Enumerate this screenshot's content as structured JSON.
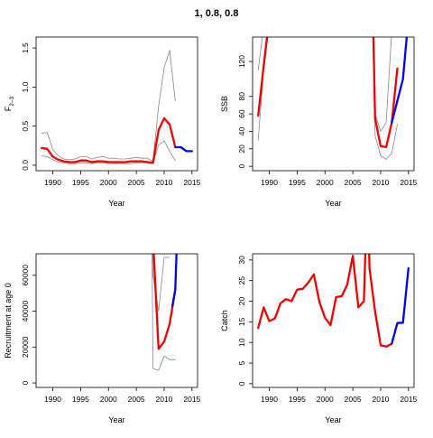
{
  "figure": {
    "title": "1, 0.8, 0.8",
    "colors": {
      "estimate": "#ee0000",
      "projection": "#0000ee",
      "bounds": "#888888",
      "axis": "#000000"
    }
  },
  "chart_data": [
    {
      "type": "line",
      "title": "",
      "xlabel": "Year",
      "ylabel": "F2–3",
      "ylabel_main": "F",
      "ylabel_sub": "2–3",
      "xlim": [
        1987,
        2016
      ],
      "ylim": [
        -0.07,
        1.64
      ],
      "xticks": [
        1990,
        1995,
        2000,
        2005,
        2010,
        2015
      ],
      "yticks": [
        0.0,
        0.5,
        1.0,
        1.5
      ],
      "ytick_labels": [
        "0.0",
        "0.5",
        "1.0",
        "1.5"
      ],
      "series": [
        {
          "role": "upper",
          "color": "#888888",
          "x": [
            1988,
            1989,
            1990,
            1991,
            1992,
            1993,
            1994,
            1995,
            1996,
            1997,
            1998,
            1999,
            2000,
            2001,
            2002,
            2003,
            2004,
            2005,
            2006,
            2007,
            2008,
            2009,
            2010,
            2011,
            2012
          ],
          "y": [
            0.41,
            0.42,
            0.2,
            0.12,
            0.08,
            0.07,
            0.08,
            0.11,
            0.11,
            0.08,
            0.1,
            0.11,
            0.09,
            0.09,
            0.08,
            0.08,
            0.09,
            0.1,
            0.09,
            0.09,
            0.05,
            0.75,
            1.25,
            1.47,
            0.82
          ]
        },
        {
          "role": "lower",
          "color": "#888888",
          "x": [
            1988,
            1989,
            1990,
            1991,
            1992,
            1993,
            1994,
            1995,
            1996,
            1997,
            1998,
            1999,
            2000,
            2001,
            2002,
            2003,
            2004,
            2005,
            2006,
            2007,
            2008,
            2009,
            2010,
            2011,
            2012
          ],
          "y": [
            0.12,
            0.11,
            0.07,
            0.04,
            0.03,
            0.02,
            0.02,
            0.03,
            0.03,
            0.02,
            0.03,
            0.03,
            0.02,
            0.02,
            0.02,
            0.02,
            0.02,
            0.03,
            0.03,
            0.03,
            0.02,
            0.26,
            0.31,
            0.18,
            0.06
          ]
        },
        {
          "role": "estimate",
          "color": "#ee0000",
          "x": [
            1988,
            1989,
            1990,
            1991,
            1992,
            1993,
            1994,
            1995,
            1996,
            1997,
            1998,
            1999,
            2000,
            2001,
            2002,
            2003,
            2004,
            2005,
            2006,
            2007,
            2008,
            2009,
            2010,
            2011,
            2012
          ],
          "y": [
            0.22,
            0.21,
            0.11,
            0.07,
            0.05,
            0.04,
            0.04,
            0.06,
            0.06,
            0.04,
            0.05,
            0.05,
            0.04,
            0.04,
            0.04,
            0.04,
            0.05,
            0.05,
            0.05,
            0.04,
            0.03,
            0.45,
            0.6,
            0.52,
            0.23
          ]
        },
        {
          "role": "projection",
          "color": "#0000ee",
          "x": [
            2012,
            2013,
            2014,
            2015
          ],
          "y": [
            0.23,
            0.23,
            0.18,
            0.18
          ]
        }
      ]
    },
    {
      "type": "line",
      "title": "",
      "xlabel": "Year",
      "ylabel": "SSB",
      "xlim": [
        1987,
        2016
      ],
      "ylim": [
        -5,
        148
      ],
      "xticks": [
        1990,
        1995,
        2000,
        2005,
        2010,
        2015
      ],
      "yticks": [
        0,
        20,
        40,
        60,
        80,
        120
      ],
      "ytick_labels": [
        "0",
        "20",
        "40",
        "60",
        "80",
        "120"
      ],
      "series": [
        {
          "role": "upper",
          "color": "#888888",
          "x": [
            1988,
            1989
          ],
          "y": [
            110,
            160
          ]
        },
        {
          "role": "lower",
          "color": "#888888",
          "x": [
            1988,
            1989,
            1990
          ],
          "y": [
            30,
            110,
            160
          ]
        },
        {
          "role": "estimate",
          "color": "#ee0000",
          "x": [
            1988,
            1989,
            1990
          ],
          "y": [
            58,
            115,
            170
          ]
        },
        {
          "role": "upper",
          "color": "#888888",
          "x": [
            2008.7,
            2009,
            2010,
            2011,
            2012
          ],
          "y": [
            150,
            60,
            40,
            50,
            155
          ]
        },
        {
          "role": "lower",
          "color": "#888888",
          "x": [
            2008.7,
            2009,
            2010,
            2011,
            2012,
            2013
          ],
          "y": [
            150,
            35,
            12,
            8,
            15,
            48
          ]
        },
        {
          "role": "estimate",
          "color": "#ee0000",
          "x": [
            2008.7,
            2009,
            2010,
            2011,
            2012,
            2013
          ],
          "y": [
            150,
            55,
            23,
            22,
            50,
            112
          ]
        },
        {
          "role": "projection",
          "color": "#0000ee",
          "x": [
            2012,
            2013,
            2014,
            2015
          ],
          "y": [
            50,
            75,
            100,
            170
          ]
        }
      ]
    },
    {
      "type": "line",
      "title": "",
      "xlabel": "Year",
      "ylabel": "Recruitment at age 0",
      "xlim": [
        1987,
        2016
      ],
      "ylim": [
        -2500,
        72000
      ],
      "xticks": [
        1990,
        1995,
        2000,
        2005,
        2010,
        2015
      ],
      "yticks": [
        0,
        20000,
        40000,
        60000
      ],
      "ytick_labels": [
        "0",
        "20000",
        "40000",
        "60000"
      ],
      "series": [
        {
          "role": "upper",
          "color": "#888888",
          "x": [
            2007.8,
            2008,
            2009,
            2010,
            2011
          ],
          "y": [
            80000,
            60000,
            40000,
            70000,
            70000
          ]
        },
        {
          "role": "lower",
          "color": "#888888",
          "x": [
            2007.8,
            2008,
            2009,
            2010,
            2011,
            2012
          ],
          "y": [
            80000,
            8000,
            7000,
            15000,
            13000,
            13000
          ]
        },
        {
          "role": "estimate",
          "color": "#ee0000",
          "x": [
            2008,
            2009,
            2010,
            2011,
            2012
          ],
          "y": [
            80000,
            19000,
            23000,
            33000,
            52000
          ]
        },
        {
          "role": "projection",
          "color": "#0000ee",
          "x": [
            2011.5,
            2012,
            2012.3
          ],
          "y": [
            43000,
            52000,
            80000
          ]
        }
      ]
    },
    {
      "type": "line",
      "title": "",
      "xlabel": "Year",
      "ylabel": "Catch",
      "xlim": [
        1987,
        2016
      ],
      "ylim": [
        -0.9,
        31.5
      ],
      "xticks": [
        1990,
        1995,
        2000,
        2005,
        2010,
        2015
      ],
      "yticks": [
        0,
        5,
        10,
        15,
        20,
        25,
        30
      ],
      "ytick_labels": [
        "0",
        "5",
        "10",
        "15",
        "20",
        "25",
        "30"
      ],
      "series": [
        {
          "role": "estimate",
          "color": "#ee0000",
          "x": [
            1988,
            1989,
            1990,
            1991,
            1992,
            1993,
            1994,
            1995,
            1996,
            1997,
            1998,
            1999,
            2000,
            2001,
            2002,
            2003,
            2004,
            2005,
            2006,
            2007,
            2007.3
          ],
          "y": [
            13.5,
            18.5,
            15.2,
            15.8,
            19.5,
            20.5,
            20.0,
            22.8,
            23.0,
            24.5,
            26.5,
            19.8,
            16.0,
            14.2,
            21.0,
            21.2,
            24.0,
            31.0,
            18.5,
            20.0,
            34
          ]
        },
        {
          "role": "estimate",
          "color": "#ee0000",
          "x": [
            2007.9,
            2008,
            2009,
            2010,
            2011,
            2012
          ],
          "y": [
            34,
            28,
            17.5,
            9.3,
            9.0,
            9.7
          ]
        },
        {
          "role": "projection",
          "color": "#0000ee",
          "x": [
            2012,
            2013,
            2014,
            2015
          ],
          "y": [
            9.7,
            14.7,
            14.8,
            28.0
          ]
        }
      ]
    }
  ]
}
